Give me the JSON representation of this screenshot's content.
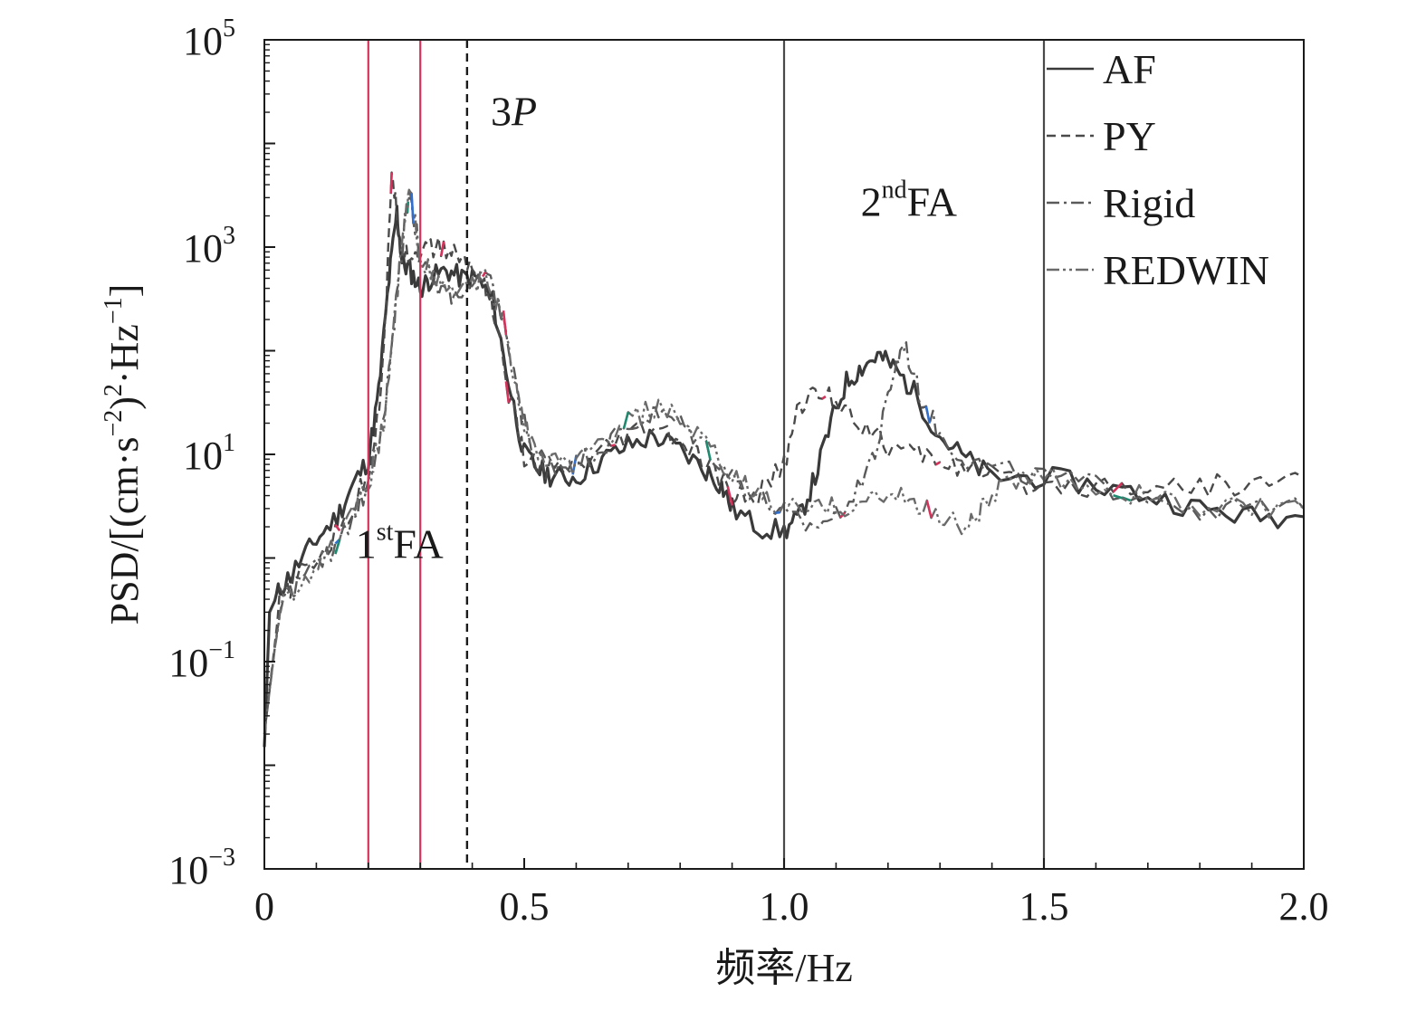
{
  "chart_data": {
    "type": "line",
    "title": "",
    "xlabel": "频率/Hz",
    "ylabel": {
      "prefix": "PSD/[(cm·s",
      "exp1": "−2",
      "mid1": ")",
      "exp2": "2",
      "mid2": "·Hz",
      "exp3": "−1",
      "suffix": "]"
    },
    "xlim": [
      0,
      2.0
    ],
    "ylim": [
      0.001,
      100000
    ],
    "yscale": "log",
    "grid": false,
    "legend_position": "top-right",
    "xticks": [
      {
        "value": 0,
        "label": "0"
      },
      {
        "value": 0.5,
        "label": "0.5"
      },
      {
        "value": 1.0,
        "label": "1.0"
      },
      {
        "value": 1.5,
        "label": "1.5"
      },
      {
        "value": 2.0,
        "label": "2.0"
      }
    ],
    "yticks": [
      {
        "value": 0.001,
        "base": "10",
        "exp": "−3"
      },
      {
        "value": 0.1,
        "base": "10",
        "exp": "−1"
      },
      {
        "value": 10,
        "base": "10",
        "exp": "1"
      },
      {
        "value": 1000,
        "base": "10",
        "exp": "3"
      },
      {
        "value": 100000,
        "base": "10",
        "exp": "5"
      }
    ],
    "vertical_lines": [
      {
        "x": 0.2,
        "color": "#d6335c",
        "style": "solid"
      },
      {
        "x": 0.3,
        "color": "#d6335c",
        "style": "solid"
      },
      {
        "x": 0.39,
        "color": "#1a1a1a",
        "style": "dashed"
      },
      {
        "x": 1.0,
        "color": "#4a4a4a",
        "style": "solid"
      },
      {
        "x": 1.5,
        "color": "#4a4a4a",
        "style": "solid"
      }
    ],
    "annotations": [
      {
        "id": "first",
        "x": 0.26,
        "y": 1,
        "pre": "1",
        "sup": "st",
        "post": "FA"
      },
      {
        "id": "threep",
        "x": 0.48,
        "y": 15000,
        "pre": "3",
        "italic": "P"
      },
      {
        "id": "second",
        "x": 1.24,
        "y": 2000,
        "pre": "2",
        "sup": "nd",
        "post": "FA"
      }
    ],
    "series": [
      {
        "name": "AF",
        "style": "solid",
        "color": "#3a3a3a",
        "points": [
          [
            0,
            0.015
          ],
          [
            0.01,
            0.3
          ],
          [
            0.03,
            0.5
          ],
          [
            0.06,
            0.8
          ],
          [
            0.1,
            1.5
          ],
          [
            0.14,
            2.5
          ],
          [
            0.17,
            5
          ],
          [
            0.2,
            9
          ],
          [
            0.22,
            40
          ],
          [
            0.24,
            500
          ],
          [
            0.255,
            2200
          ],
          [
            0.265,
            700
          ],
          [
            0.28,
            600
          ],
          [
            0.3,
            400
          ],
          [
            0.32,
            500
          ],
          [
            0.35,
            600
          ],
          [
            0.38,
            500
          ],
          [
            0.41,
            500
          ],
          [
            0.44,
            300
          ],
          [
            0.47,
            50
          ],
          [
            0.5,
            10
          ],
          [
            0.53,
            7
          ],
          [
            0.56,
            6
          ],
          [
            0.6,
            6
          ],
          [
            0.65,
            9
          ],
          [
            0.7,
            12
          ],
          [
            0.75,
            15
          ],
          [
            0.8,
            11
          ],
          [
            0.85,
            7
          ],
          [
            0.88,
            5
          ],
          [
            0.9,
            3
          ],
          [
            0.95,
            2
          ],
          [
            1.0,
            1.8
          ],
          [
            1.03,
            2.5
          ],
          [
            1.06,
            6
          ],
          [
            1.09,
            20
          ],
          [
            1.12,
            50
          ],
          [
            1.15,
            70
          ],
          [
            1.18,
            90
          ],
          [
            1.21,
            70
          ],
          [
            1.25,
            40
          ],
          [
            1.3,
            15
          ],
          [
            1.35,
            9
          ],
          [
            1.4,
            6
          ],
          [
            1.5,
            6
          ],
          [
            1.6,
            5
          ],
          [
            1.7,
            4
          ],
          [
            1.8,
            3
          ],
          [
            1.9,
            2.5
          ],
          [
            2.0,
            2.5
          ]
        ]
      },
      {
        "name": "PY",
        "style": "dashed",
        "color": "#4a4a4a",
        "points": [
          [
            0,
            0.02
          ],
          [
            0.03,
            0.4
          ],
          [
            0.07,
            0.7
          ],
          [
            0.12,
            1.2
          ],
          [
            0.17,
            3
          ],
          [
            0.2,
            7
          ],
          [
            0.22,
            25
          ],
          [
            0.235,
            300
          ],
          [
            0.245,
            6000
          ],
          [
            0.26,
            1200
          ],
          [
            0.28,
            800
          ],
          [
            0.3,
            900
          ],
          [
            0.33,
            1000
          ],
          [
            0.36,
            900
          ],
          [
            0.39,
            700
          ],
          [
            0.42,
            500
          ],
          [
            0.44,
            250
          ],
          [
            0.47,
            40
          ],
          [
            0.5,
            9
          ],
          [
            0.55,
            7
          ],
          [
            0.6,
            7
          ],
          [
            0.65,
            10
          ],
          [
            0.7,
            15
          ],
          [
            0.75,
            18
          ],
          [
            0.8,
            13
          ],
          [
            0.85,
            8
          ],
          [
            0.9,
            4
          ],
          [
            0.95,
            4
          ],
          [
            1.0,
            8
          ],
          [
            1.03,
            30
          ],
          [
            1.06,
            40
          ],
          [
            1.1,
            35
          ],
          [
            1.15,
            20
          ],
          [
            1.2,
            12
          ],
          [
            1.25,
            10
          ],
          [
            1.3,
            9
          ],
          [
            1.35,
            7
          ],
          [
            1.4,
            6
          ],
          [
            1.5,
            5
          ],
          [
            1.6,
            5
          ],
          [
            1.7,
            5
          ],
          [
            1.8,
            5
          ],
          [
            1.9,
            5
          ],
          [
            2.0,
            6
          ]
        ]
      },
      {
        "name": "Rigid",
        "style": "dashdot",
        "color": "#5a5a5a",
        "points": [
          [
            0,
            0.02
          ],
          [
            0.03,
            0.35
          ],
          [
            0.07,
            0.6
          ],
          [
            0.12,
            1
          ],
          [
            0.17,
            2.5
          ],
          [
            0.2,
            5
          ],
          [
            0.23,
            20
          ],
          [
            0.25,
            200
          ],
          [
            0.27,
            1800
          ],
          [
            0.28,
            3500
          ],
          [
            0.3,
            800
          ],
          [
            0.33,
            400
          ],
          [
            0.36,
            350
          ],
          [
            0.4,
            400
          ],
          [
            0.43,
            500
          ],
          [
            0.46,
            200
          ],
          [
            0.49,
            30
          ],
          [
            0.52,
            10
          ],
          [
            0.56,
            8
          ],
          [
            0.6,
            8
          ],
          [
            0.65,
            12
          ],
          [
            0.7,
            18
          ],
          [
            0.75,
            25
          ],
          [
            0.8,
            20
          ],
          [
            0.85,
            12
          ],
          [
            0.9,
            6
          ],
          [
            0.95,
            4
          ],
          [
            1.0,
            2.5
          ],
          [
            1.05,
            2
          ],
          [
            1.1,
            2.5
          ],
          [
            1.15,
            6
          ],
          [
            1.18,
            12
          ],
          [
            1.21,
            60
          ],
          [
            1.23,
            120
          ],
          [
            1.26,
            40
          ],
          [
            1.3,
            15
          ],
          [
            1.35,
            9
          ],
          [
            1.4,
            7
          ],
          [
            1.5,
            6
          ],
          [
            1.6,
            5
          ],
          [
            1.7,
            4
          ],
          [
            1.8,
            3
          ],
          [
            1.9,
            3
          ],
          [
            2.0,
            3
          ]
        ]
      },
      {
        "name": "REDWIN",
        "style": "dashdotdot",
        "color": "#6a6a6a",
        "points": [
          [
            0,
            0.02
          ],
          [
            0.03,
            0.35
          ],
          [
            0.07,
            0.6
          ],
          [
            0.12,
            1
          ],
          [
            0.17,
            2.5
          ],
          [
            0.2,
            5
          ],
          [
            0.23,
            20
          ],
          [
            0.25,
            200
          ],
          [
            0.27,
            1800
          ],
          [
            0.28,
            3500
          ],
          [
            0.3,
            800
          ],
          [
            0.33,
            450
          ],
          [
            0.36,
            380
          ],
          [
            0.4,
            420
          ],
          [
            0.43,
            500
          ],
          [
            0.46,
            200
          ],
          [
            0.49,
            30
          ],
          [
            0.52,
            10
          ],
          [
            0.56,
            8
          ],
          [
            0.6,
            8
          ],
          [
            0.65,
            13
          ],
          [
            0.7,
            20
          ],
          [
            0.75,
            28
          ],
          [
            0.8,
            22
          ],
          [
            0.85,
            12
          ],
          [
            0.9,
            6
          ],
          [
            0.95,
            4
          ],
          [
            1.0,
            3
          ],
          [
            1.05,
            3
          ],
          [
            1.1,
            3
          ],
          [
            1.15,
            3.5
          ],
          [
            1.2,
            4
          ],
          [
            1.25,
            3.5
          ],
          [
            1.3,
            2.5
          ],
          [
            1.35,
            2
          ],
          [
            1.38,
            3
          ],
          [
            1.42,
            5
          ],
          [
            1.5,
            6
          ],
          [
            1.6,
            5
          ],
          [
            1.7,
            4
          ],
          [
            1.8,
            3
          ],
          [
            1.9,
            3
          ],
          [
            2.0,
            3
          ]
        ]
      }
    ]
  }
}
